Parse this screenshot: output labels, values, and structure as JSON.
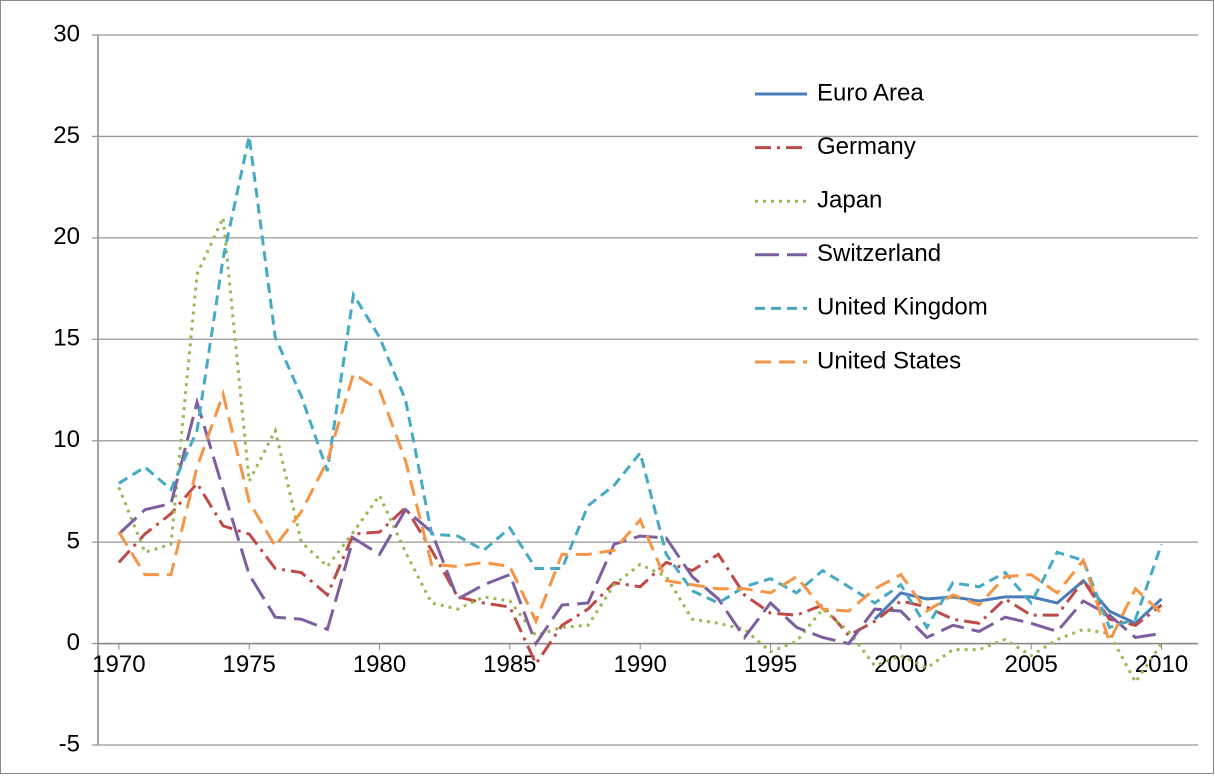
{
  "chart_data": {
    "type": "line",
    "x": [
      1970,
      1971,
      1972,
      1973,
      1974,
      1975,
      1976,
      1977,
      1978,
      1979,
      1980,
      1981,
      1982,
      1983,
      1984,
      1985,
      1986,
      1987,
      1988,
      1989,
      1990,
      1991,
      1992,
      1993,
      1994,
      1995,
      1996,
      1997,
      1998,
      1999,
      2000,
      2001,
      2002,
      2003,
      2004,
      2005,
      2006,
      2007,
      2008,
      2009,
      2010
    ],
    "xlim": [
      1969.2,
      2011.4
    ],
    "xticks": [
      1970,
      1975,
      1980,
      1985,
      1990,
      1995,
      2000,
      2005,
      2010
    ],
    "ylim": [
      -5,
      30
    ],
    "yticks": [
      -5,
      0,
      5,
      10,
      15,
      20,
      25,
      30
    ],
    "grid": true,
    "legend": "upper right",
    "series": [
      {
        "name": "Euro Area",
        "color": "#4a7ebb",
        "style": "solid",
        "values": [
          null,
          null,
          null,
          null,
          null,
          null,
          null,
          null,
          null,
          null,
          null,
          null,
          null,
          null,
          null,
          null,
          null,
          null,
          null,
          null,
          null,
          null,
          null,
          null,
          null,
          null,
          null,
          null,
          null,
          1.2,
          2.5,
          2.2,
          2.3,
          2.1,
          2.3,
          2.3,
          2.0,
          3.1,
          1.6,
          1.0,
          2.2
        ]
      },
      {
        "name": "Germany",
        "color": "#be4b48",
        "style": "dashdot",
        "values": [
          4.0,
          5.4,
          6.4,
          7.9,
          5.8,
          5.4,
          3.7,
          3.5,
          2.4,
          5.4,
          5.5,
          6.7,
          4.6,
          2.3,
          2.0,
          1.8,
          -1.0,
          0.9,
          1.7,
          3.0,
          2.8,
          4.0,
          3.6,
          4.4,
          2.4,
          1.5,
          1.4,
          1.9,
          0.4,
          1.1,
          2.1,
          1.8,
          1.2,
          1.0,
          2.2,
          1.4,
          1.4,
          3.1,
          1.2,
          0.9,
          1.9
        ]
      },
      {
        "name": "Japan",
        "color": "#98b954",
        "style": "dot",
        "values": [
          7.7,
          4.5,
          4.9,
          18.2,
          21.0,
          8.0,
          10.5,
          5.0,
          3.8,
          5.5,
          7.3,
          4.5,
          2.0,
          1.7,
          2.3,
          2.1,
          0.4,
          0.8,
          0.9,
          2.9,
          3.9,
          3.3,
          1.2,
          1.0,
          0.7,
          -0.4,
          0.1,
          1.7,
          0.6,
          -1.1,
          -0.6,
          -1.2,
          -0.3,
          -0.3,
          0.2,
          -0.6,
          0.2,
          0.7,
          0.5,
          -1.9,
          0.0
        ]
      },
      {
        "name": "Switzerland",
        "color": "#7d5fa0",
        "style": "longdash",
        "values": [
          5.4,
          6.6,
          6.9,
          11.9,
          7.6,
          3.4,
          1.3,
          1.2,
          0.7,
          5.2,
          4.4,
          6.6,
          5.5,
          2.2,
          2.9,
          3.4,
          0.0,
          1.9,
          2.0,
          4.9,
          5.3,
          5.2,
          3.3,
          2.2,
          0.3,
          2.0,
          0.8,
          0.3,
          0.0,
          1.7,
          1.6,
          0.3,
          0.9,
          0.6,
          1.3,
          1.0,
          0.6,
          2.1,
          1.4,
          0.3,
          0.5
        ]
      },
      {
        "name": "United Kingdom",
        "color": "#46aac5",
        "style": "shortdash",
        "values": [
          7.9,
          8.7,
          7.6,
          10.5,
          19.0,
          25.0,
          15.1,
          12.2,
          8.5,
          17.2,
          15.1,
          12.0,
          5.4,
          5.3,
          4.6,
          5.7,
          3.7,
          3.7,
          6.8,
          7.8,
          9.4,
          4.4,
          2.6,
          2.0,
          2.8,
          3.2,
          2.5,
          3.6,
          2.8,
          2.0,
          2.9,
          0.8,
          3.0,
          2.8,
          3.5,
          2.0,
          4.5,
          4.1,
          0.8,
          1.2,
          4.9
        ]
      },
      {
        "name": "United States",
        "color": "#f69545",
        "style": "dash",
        "values": [
          5.5,
          3.4,
          3.4,
          8.7,
          12.3,
          7.0,
          4.8,
          6.5,
          9.0,
          13.3,
          12.5,
          9.0,
          3.9,
          3.8,
          4.0,
          3.8,
          1.1,
          4.4,
          4.4,
          4.6,
          6.1,
          3.1,
          2.9,
          2.7,
          2.7,
          2.5,
          3.3,
          1.7,
          1.6,
          2.7,
          3.4,
          1.6,
          2.4,
          1.9,
          3.3,
          3.4,
          2.5,
          4.1,
          0.1,
          2.7,
          1.5
        ]
      }
    ]
  }
}
